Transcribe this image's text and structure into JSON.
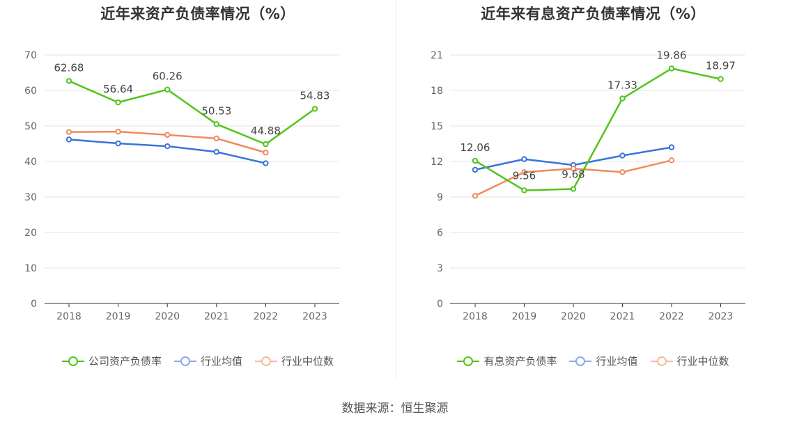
{
  "chart_data": [
    {
      "type": "line",
      "title": "近年来资产负债率情况（%）",
      "categories": [
        "2018",
        "2019",
        "2020",
        "2021",
        "2022",
        "2023"
      ],
      "ylim": [
        0,
        70
      ],
      "yticks": [
        0,
        10,
        20,
        30,
        40,
        50,
        60,
        70
      ],
      "grid": true,
      "legend_position": "bottom",
      "series": [
        {
          "name": "公司资产负债率",
          "color": "#52c41a",
          "labeled": true,
          "values": [
            62.68,
            56.64,
            60.26,
            50.53,
            44.88,
            54.83
          ]
        },
        {
          "name": "行业均值",
          "color": "#3b73d9",
          "labeled": false,
          "values": [
            46.2,
            45.1,
            44.3,
            42.7,
            39.5,
            null
          ]
        },
        {
          "name": "行业中位数",
          "color": "#f08a5d",
          "labeled": false,
          "values": [
            48.3,
            48.4,
            47.5,
            46.5,
            42.5,
            null
          ]
        }
      ]
    },
    {
      "type": "line",
      "title": "近年来有息资产负债率情况（%）",
      "categories": [
        "2018",
        "2019",
        "2020",
        "2021",
        "2022",
        "2023"
      ],
      "ylim": [
        0,
        21
      ],
      "yticks": [
        0,
        3,
        6,
        9,
        12,
        15,
        18,
        21
      ],
      "grid": true,
      "legend_position": "bottom",
      "series": [
        {
          "name": "有息资产负债率",
          "color": "#52c41a",
          "labeled": true,
          "values": [
            12.06,
            9.56,
            9.68,
            17.33,
            19.86,
            18.97
          ]
        },
        {
          "name": "行业均值",
          "color": "#3b73d9",
          "labeled": false,
          "values": [
            11.3,
            12.2,
            11.7,
            12.5,
            13.2,
            null
          ]
        },
        {
          "name": "行业中位数",
          "color": "#f08a5d",
          "labeled": false,
          "values": [
            9.1,
            11.1,
            11.4,
            11.1,
            12.1,
            null
          ]
        }
      ]
    }
  ],
  "source": "数据来源：恒生聚源",
  "colors": {
    "axis": "#333333",
    "grid": "#e6e6e6",
    "tick_label": "#666666",
    "data_label": "#444444"
  }
}
